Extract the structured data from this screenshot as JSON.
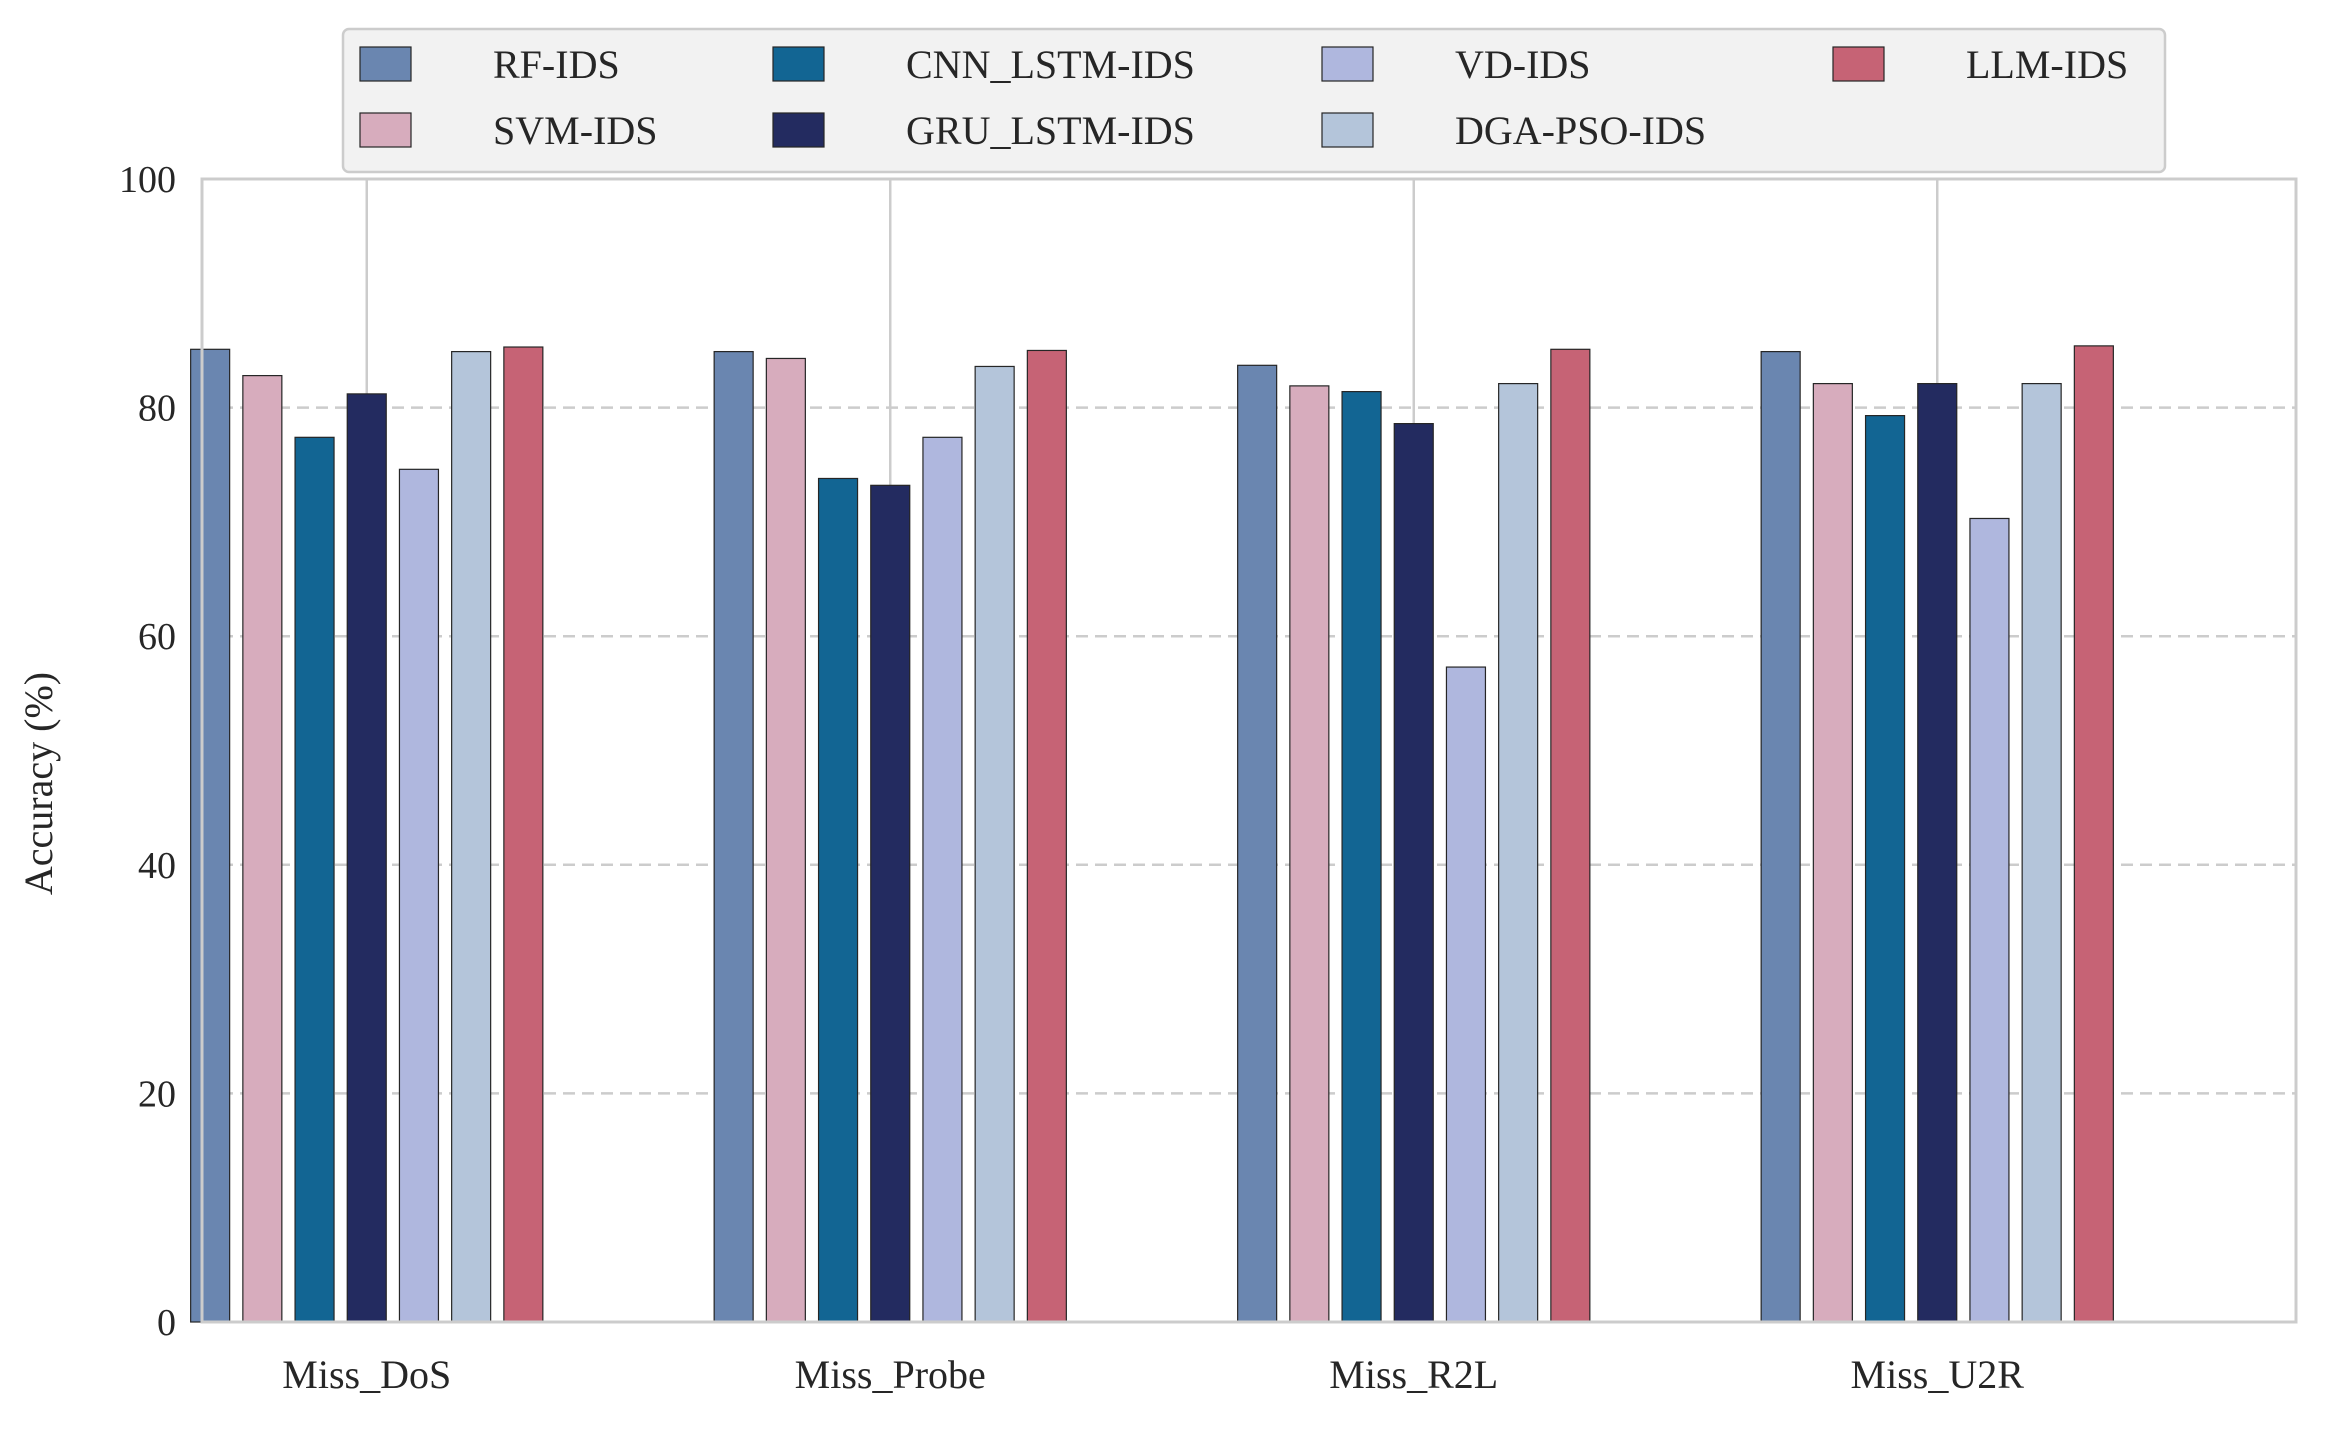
{
  "chart_data": {
    "type": "bar",
    "title": "",
    "xlabel": "",
    "ylabel": "Accuracy (%)",
    "ylim": [
      0,
      100
    ],
    "yticks": [
      0,
      20,
      40,
      60,
      80,
      100
    ],
    "grid": "horizontal dashed",
    "legend_position": "top-center",
    "categories": [
      "Miss_DoS",
      "Miss_Probe",
      "Miss_R2L",
      "Miss_U2R"
    ],
    "series": [
      {
        "name": "RF-IDS",
        "color": "#6a86b0",
        "values": [
          85.1,
          84.9,
          83.7,
          84.9
        ]
      },
      {
        "name": "SVM-IDS",
        "color": "#d7acbd",
        "values": [
          82.8,
          84.3,
          81.9,
          82.1
        ]
      },
      {
        "name": "CNN_LSTM-IDS",
        "color": "#126593",
        "values": [
          77.4,
          73.8,
          81.4,
          79.3
        ]
      },
      {
        "name": "GRU_LSTM-IDS",
        "color": "#232b60",
        "values": [
          81.2,
          73.2,
          78.6,
          82.1
        ]
      },
      {
        "name": "VD-IDS",
        "color": "#afb7de",
        "values": [
          74.6,
          77.4,
          57.3,
          70.3
        ]
      },
      {
        "name": "DGA-PSO-IDS",
        "color": "#b4c5da",
        "values": [
          84.9,
          83.6,
          82.1,
          82.1
        ]
      },
      {
        "name": "LLM-IDS",
        "color": "#c66375",
        "values": [
          85.3,
          85.0,
          85.1,
          85.4
        ]
      }
    ]
  }
}
